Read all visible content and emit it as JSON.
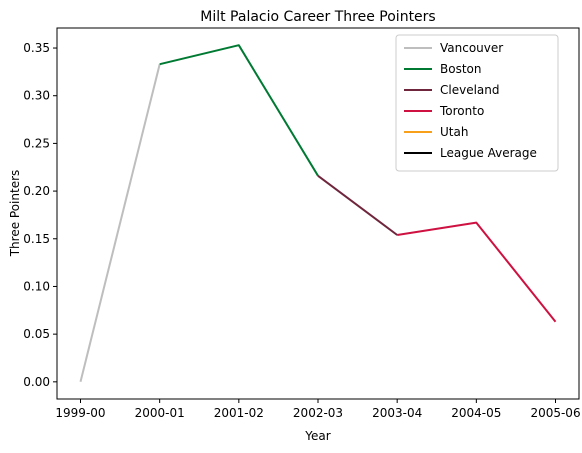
{
  "chart_data": {
    "type": "line",
    "title": "Milt Palacio Career Three Pointers",
    "xlabel": "Year",
    "ylabel": "Three Pointers",
    "categories": [
      "1999-00",
      "2000-01",
      "2001-02",
      "2002-03",
      "2003-04",
      "2004-05",
      "2005-06"
    ],
    "ylim": [
      -0.018,
      0.371
    ],
    "yticks": [
      0.0,
      0.05,
      0.1,
      0.15,
      0.2,
      0.25,
      0.3,
      0.35
    ],
    "ytick_labels": [
      "0.00",
      "0.05",
      "0.10",
      "0.15",
      "0.20",
      "0.25",
      "0.30",
      "0.35"
    ],
    "grid": false,
    "legend_position": "top-right",
    "series": [
      {
        "name": "Vancouver",
        "color": "#bebebe",
        "points": [
          [
            0,
            0.0
          ],
          [
            1,
            0.333
          ]
        ]
      },
      {
        "name": "Boston",
        "color": "#007a33",
        "points": [
          [
            1,
            0.333
          ],
          [
            2,
            0.353
          ],
          [
            3,
            0.216
          ]
        ]
      },
      {
        "name": "Cleveland",
        "color": "#6f263d",
        "points": [
          [
            3,
            0.216
          ],
          [
            4,
            0.154
          ]
        ]
      },
      {
        "name": "Toronto",
        "color": "#ce1141",
        "points": [
          [
            4,
            0.154
          ],
          [
            5,
            0.167
          ],
          [
            6,
            0.063
          ]
        ]
      },
      {
        "name": "Utah",
        "color": "#f9a01b",
        "points": []
      },
      {
        "name": "League Average",
        "color": "#000000",
        "points": []
      }
    ]
  }
}
